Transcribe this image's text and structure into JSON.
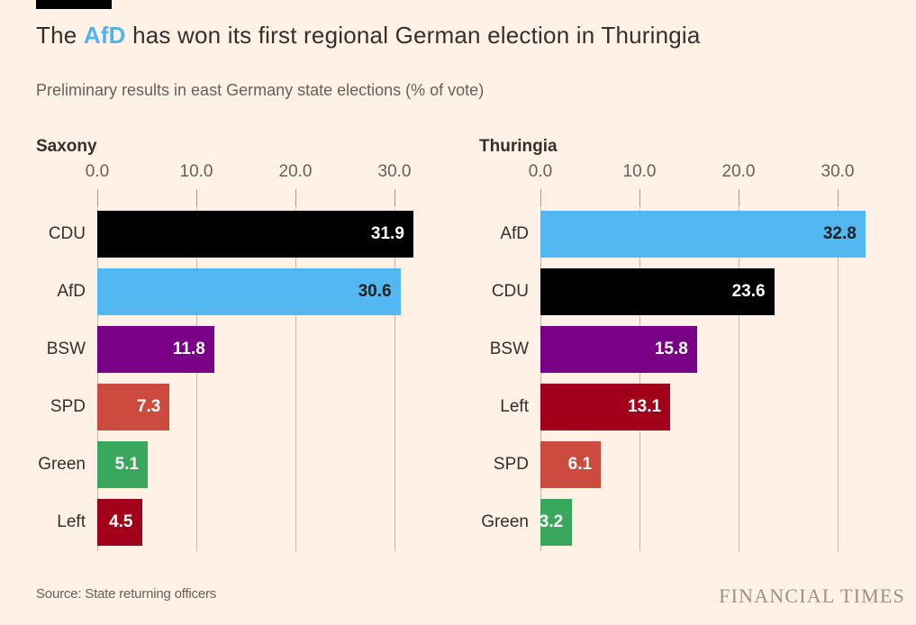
{
  "meta": {
    "background_color": "#FFF1E5",
    "accent_blue": "#4FB3F0",
    "text_dark": "#33302E",
    "text_gray": "#66605B",
    "gridline_color": "#C3BAAF"
  },
  "header": {
    "title_pre": "The ",
    "title_highlight": "AfD",
    "title_post": " has won its first regional German election in Thuringia",
    "subtitle": "Preliminary results in east Germany state elections (% of vote)"
  },
  "footer": {
    "source": "Source: State returning officers",
    "brand": "FINANCIAL TIMES"
  },
  "chart_data": [
    {
      "type": "bar",
      "orientation": "horizontal",
      "title": "Saxony",
      "categories": [
        "CDU",
        "AfD",
        "BSW",
        "SPD",
        "Green",
        "Left"
      ],
      "values": [
        31.9,
        30.6,
        11.8,
        7.3,
        5.1,
        4.5
      ],
      "bar_colors": [
        "#000000",
        "#53B7F2",
        "#7A0087",
        "#CC4A3E",
        "#3AA85C",
        "#A2001A"
      ],
      "value_label_colors": [
        "#FFFFFF",
        "#211D1B",
        "#FFFFFF",
        "#FFFFFF",
        "#FFFFFF",
        "#FFFFFF"
      ],
      "xlim": [
        0,
        34
      ],
      "ticks": [
        0,
        10,
        20,
        30
      ],
      "tick_labels": [
        "0.0",
        "10.0",
        "20.0",
        "30.0"
      ],
      "grid": true,
      "legend": "none",
      "value_labels_position": "inside-end"
    },
    {
      "type": "bar",
      "orientation": "horizontal",
      "title": "Thuringia",
      "categories": [
        "AfD",
        "CDU",
        "BSW",
        "Left",
        "SPD",
        "Green"
      ],
      "values": [
        32.8,
        23.6,
        15.8,
        13.1,
        6.1,
        3.2
      ],
      "bar_colors": [
        "#53B7F2",
        "#000000",
        "#7A0087",
        "#A2001A",
        "#CC4A3E",
        "#3AA85C"
      ],
      "value_label_colors": [
        "#211D1B",
        "#FFFFFF",
        "#FFFFFF",
        "#FFFFFF",
        "#FFFFFF",
        "#FFFFFF"
      ],
      "xlim": [
        0,
        34
      ],
      "ticks": [
        0,
        10,
        20,
        30
      ],
      "tick_labels": [
        "0.0",
        "10.0",
        "20.0",
        "30.0"
      ],
      "grid": true,
      "legend": "none",
      "value_labels_position": "inside-end"
    }
  ]
}
